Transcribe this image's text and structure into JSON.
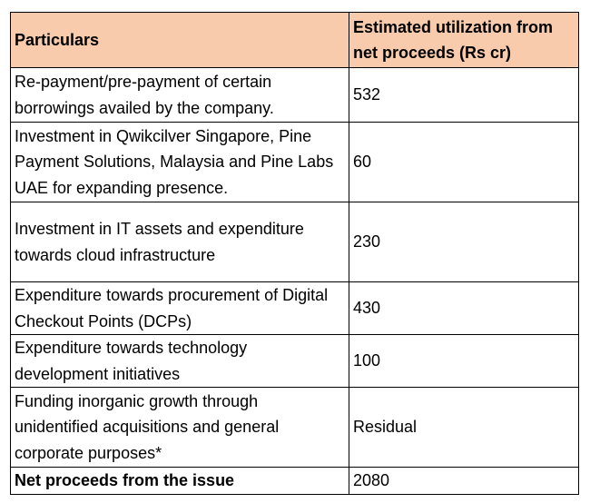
{
  "table": {
    "headers": [
      "Particulars",
      "Estimated utilization from net proceeds (Rs cr)"
    ],
    "rows": [
      {
        "particular": "Re-payment/pre-payment of certain borrowings availed by the company.",
        "amount": "532"
      },
      {
        "particular": "Investment in Qwikcilver Singapore, Pine Payment Solutions, Malaysia and Pine Labs UAE for expanding presence.",
        "amount": "60"
      },
      {
        "particular": "Investment in IT assets and expenditure towards cloud infrastructure",
        "amount": "230"
      },
      {
        "particular": "Expenditure towards procurement of Digital Checkout Points (DCPs)",
        "amount": "430"
      },
      {
        "particular": "Expenditure towards technology development initiatives",
        "amount": "100"
      },
      {
        "particular": "Funding inorganic growth through unidentified acquisitions and general corporate purposes*",
        "amount": "Residual"
      }
    ],
    "total": {
      "particular": "Net proceeds from the issue",
      "amount": "2080"
    }
  },
  "colors": {
    "header_background": "#f8cbad",
    "border": "#000000",
    "text": "#000000"
  }
}
